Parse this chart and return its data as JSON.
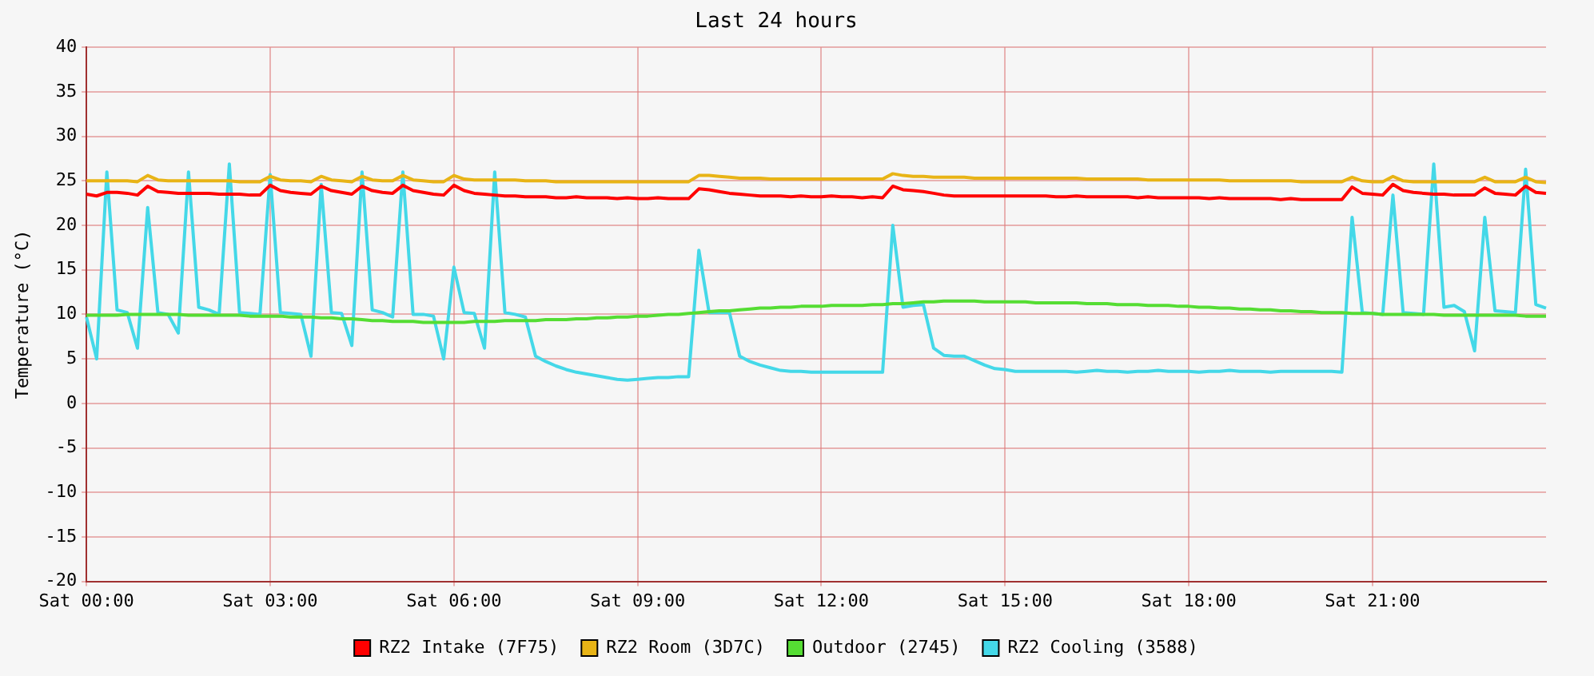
{
  "chart_data": {
    "type": "line",
    "title": "Last 24 hours",
    "ylabel": "Temperature (°C)",
    "categories": [
      "Sat 00:00",
      null,
      null,
      null,
      null,
      null,
      null,
      null,
      null,
      null,
      null,
      null,
      null,
      null,
      null,
      null,
      null,
      null,
      "Sat 03:00",
      null,
      null,
      null,
      null,
      null,
      null,
      null,
      null,
      null,
      null,
      null,
      null,
      null,
      null,
      null,
      null,
      null,
      "Sat 06:00",
      null,
      null,
      null,
      null,
      null,
      null,
      null,
      null,
      null,
      null,
      null,
      null,
      null,
      null,
      null,
      null,
      null,
      "Sat 09:00",
      null,
      null,
      null,
      null,
      null,
      null,
      null,
      null,
      null,
      null,
      null,
      null,
      null,
      null,
      null,
      null,
      null,
      "Sat 12:00",
      null,
      null,
      null,
      null,
      null,
      null,
      null,
      null,
      null,
      null,
      null,
      null,
      null,
      null,
      null,
      null,
      null,
      "Sat 15:00",
      null,
      null,
      null,
      null,
      null,
      null,
      null,
      null,
      null,
      null,
      null,
      null,
      null,
      null,
      null,
      null,
      null,
      "Sat 18:00",
      null,
      null,
      null,
      null,
      null,
      null,
      null,
      null,
      null,
      null,
      null,
      null,
      null,
      null,
      null,
      null,
      null,
      "Sat 21:00",
      null,
      null,
      null,
      null,
      null,
      null,
      null,
      null,
      null,
      null,
      null,
      null,
      null,
      null,
      null,
      null,
      null
    ],
    "ylim": [
      -20,
      40
    ],
    "yticks": [
      -20,
      -15,
      -10,
      -5,
      0,
      5,
      10,
      15,
      20,
      25,
      30,
      35,
      40
    ],
    "grid": true,
    "legend": "bottom",
    "marker": "none",
    "line_style": "solid",
    "series": [
      {
        "name": "RZ2 Intake (7F75)",
        "color": "#ff0000",
        "values": [
          23.5,
          23.3,
          23.7,
          23.7,
          23.6,
          23.4,
          24.4,
          23.8,
          23.7,
          23.6,
          23.6,
          23.6,
          23.6,
          23.5,
          23.5,
          23.5,
          23.4,
          23.4,
          24.5,
          23.9,
          23.7,
          23.6,
          23.5,
          24.4,
          23.9,
          23.7,
          23.5,
          24.4,
          23.9,
          23.7,
          23.6,
          24.5,
          23.9,
          23.7,
          23.5,
          23.4,
          24.5,
          23.9,
          23.6,
          23.5,
          23.4,
          23.3,
          23.3,
          23.2,
          23.2,
          23.2,
          23.1,
          23.1,
          23.2,
          23.1,
          23.1,
          23.1,
          23.0,
          23.1,
          23.0,
          23.0,
          23.1,
          23.0,
          23.0,
          23.0,
          24.1,
          24.0,
          23.8,
          23.6,
          23.5,
          23.4,
          23.3,
          23.3,
          23.3,
          23.2,
          23.3,
          23.2,
          23.2,
          23.3,
          23.2,
          23.2,
          23.1,
          23.2,
          23.1,
          24.4,
          24.0,
          23.9,
          23.8,
          23.6,
          23.4,
          23.3,
          23.3,
          23.3,
          23.3,
          23.3,
          23.3,
          23.3,
          23.3,
          23.3,
          23.3,
          23.2,
          23.2,
          23.3,
          23.2,
          23.2,
          23.2,
          23.2,
          23.2,
          23.1,
          23.2,
          23.1,
          23.1,
          23.1,
          23.1,
          23.1,
          23.0,
          23.1,
          23.0,
          23.0,
          23.0,
          23.0,
          23.0,
          22.9,
          23.0,
          22.9,
          22.9,
          22.9,
          22.9,
          22.9,
          24.3,
          23.6,
          23.5,
          23.4,
          24.6,
          23.9,
          23.7,
          23.6,
          23.5,
          23.5,
          23.4,
          23.4,
          23.4,
          24.2,
          23.6,
          23.5,
          23.4,
          24.4,
          23.7,
          23.6
        ]
      },
      {
        "name": "RZ2 Room (3D7C)",
        "color": "#e8b416",
        "values": [
          25.0,
          25.0,
          25.0,
          25.0,
          25.0,
          24.9,
          25.6,
          25.1,
          25.0,
          25.0,
          25.0,
          25.0,
          25.0,
          25.0,
          25.0,
          24.9,
          24.9,
          24.9,
          25.5,
          25.1,
          25.0,
          25.0,
          24.9,
          25.5,
          25.1,
          25.0,
          24.9,
          25.5,
          25.1,
          25.0,
          25.0,
          25.6,
          25.1,
          25.0,
          24.9,
          24.9,
          25.6,
          25.2,
          25.1,
          25.1,
          25.1,
          25.1,
          25.1,
          25.0,
          25.0,
          25.0,
          24.9,
          24.9,
          24.9,
          24.9,
          24.9,
          24.9,
          24.9,
          24.9,
          24.9,
          24.9,
          24.9,
          24.9,
          24.9,
          24.9,
          25.6,
          25.6,
          25.5,
          25.4,
          25.3,
          25.3,
          25.3,
          25.2,
          25.2,
          25.2,
          25.2,
          25.2,
          25.2,
          25.2,
          25.2,
          25.2,
          25.2,
          25.2,
          25.2,
          25.8,
          25.6,
          25.5,
          25.5,
          25.4,
          25.4,
          25.4,
          25.4,
          25.3,
          25.3,
          25.3,
          25.3,
          25.3,
          25.3,
          25.3,
          25.3,
          25.3,
          25.3,
          25.3,
          25.2,
          25.2,
          25.2,
          25.2,
          25.2,
          25.2,
          25.1,
          25.1,
          25.1,
          25.1,
          25.1,
          25.1,
          25.1,
          25.1,
          25.0,
          25.0,
          25.0,
          25.0,
          25.0,
          25.0,
          25.0,
          24.9,
          24.9,
          24.9,
          24.9,
          24.9,
          25.4,
          25.0,
          24.9,
          24.9,
          25.5,
          25.0,
          24.9,
          24.9,
          24.9,
          24.9,
          24.9,
          24.9,
          24.9,
          25.4,
          24.9,
          24.9,
          24.9,
          25.4,
          24.9,
          24.8
        ]
      },
      {
        "name": "Outdoor (2745)",
        "color": "#55dd33",
        "values": [
          9.9,
          9.9,
          9.9,
          9.9,
          10.0,
          10.0,
          10.0,
          10.0,
          10.0,
          10.0,
          9.9,
          9.9,
          9.9,
          9.9,
          9.9,
          9.9,
          9.8,
          9.8,
          9.8,
          9.8,
          9.7,
          9.7,
          9.7,
          9.6,
          9.6,
          9.5,
          9.5,
          9.4,
          9.3,
          9.3,
          9.2,
          9.2,
          9.2,
          9.1,
          9.1,
          9.1,
          9.1,
          9.1,
          9.2,
          9.2,
          9.2,
          9.3,
          9.3,
          9.3,
          9.3,
          9.4,
          9.4,
          9.4,
          9.5,
          9.5,
          9.6,
          9.6,
          9.7,
          9.7,
          9.8,
          9.8,
          9.9,
          10.0,
          10.0,
          10.1,
          10.2,
          10.3,
          10.4,
          10.4,
          10.5,
          10.6,
          10.7,
          10.7,
          10.8,
          10.8,
          10.9,
          10.9,
          10.9,
          11.0,
          11.0,
          11.0,
          11.0,
          11.1,
          11.1,
          11.2,
          11.2,
          11.3,
          11.4,
          11.4,
          11.5,
          11.5,
          11.5,
          11.5,
          11.4,
          11.4,
          11.4,
          11.4,
          11.4,
          11.3,
          11.3,
          11.3,
          11.3,
          11.3,
          11.2,
          11.2,
          11.2,
          11.1,
          11.1,
          11.1,
          11.0,
          11.0,
          11.0,
          10.9,
          10.9,
          10.8,
          10.8,
          10.7,
          10.7,
          10.6,
          10.6,
          10.5,
          10.5,
          10.4,
          10.4,
          10.3,
          10.3,
          10.2,
          10.2,
          10.2,
          10.1,
          10.1,
          10.1,
          10.0,
          10.0,
          10.0,
          10.0,
          10.0,
          10.0,
          9.9,
          9.9,
          9.9,
          9.9,
          9.9,
          9.9,
          9.9,
          9.9,
          9.8,
          9.8,
          9.8
        ]
      },
      {
        "name": "RZ2 Cooling (3588)",
        "color": "#44d8e8",
        "values": [
          9.7,
          5.0,
          26.0,
          10.5,
          10.2,
          6.2,
          22.0,
          10.2,
          10.0,
          7.9,
          26.0,
          10.8,
          10.5,
          10.0,
          26.9,
          10.2,
          10.1,
          10.0,
          25.7,
          10.2,
          10.1,
          10.0,
          5.3,
          24.6,
          10.2,
          10.1,
          6.5,
          26.0,
          10.5,
          10.2,
          9.7,
          26.0,
          10.0,
          10.0,
          9.8,
          5.0,
          15.3,
          10.2,
          10.1,
          6.2,
          26.0,
          10.2,
          10.0,
          9.7,
          5.3,
          4.7,
          4.2,
          3.8,
          3.5,
          3.3,
          3.1,
          2.9,
          2.7,
          2.6,
          2.7,
          2.8,
          2.9,
          2.9,
          3.0,
          3.0,
          17.2,
          10.2,
          10.2,
          10.2,
          5.3,
          4.7,
          4.3,
          4.0,
          3.7,
          3.6,
          3.6,
          3.5,
          3.5,
          3.5,
          3.5,
          3.5,
          3.5,
          3.5,
          3.5,
          20.0,
          10.8,
          11.0,
          11.1,
          6.2,
          5.4,
          5.3,
          5.3,
          4.8,
          4.3,
          3.9,
          3.8,
          3.6,
          3.6,
          3.6,
          3.6,
          3.6,
          3.6,
          3.5,
          3.6,
          3.7,
          3.6,
          3.6,
          3.5,
          3.6,
          3.6,
          3.7,
          3.6,
          3.6,
          3.6,
          3.5,
          3.6,
          3.6,
          3.7,
          3.6,
          3.6,
          3.6,
          3.5,
          3.6,
          3.6,
          3.6,
          3.6,
          3.6,
          3.6,
          3.5,
          20.9,
          10.2,
          10.1,
          10.0,
          23.4,
          10.2,
          10.1,
          10.0,
          26.9,
          10.8,
          11.0,
          10.3,
          5.9,
          20.9,
          10.4,
          10.3,
          10.2,
          26.3,
          11.1,
          10.7
        ]
      }
    ]
  }
}
